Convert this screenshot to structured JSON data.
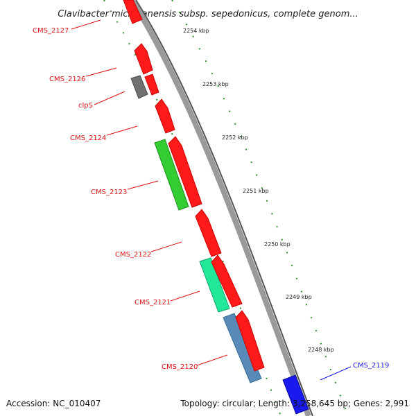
{
  "title": "Clavibacter michiganensis subsp. sepedonicus, complete genom...",
  "accession": "Accession: NC_010407",
  "summary": "Topology: circular; Length: 3,258,645 bp; Genes: 2,991",
  "colors": {
    "backbone": "#7a7a7a",
    "tick": "#2a8f2a",
    "forward_gene": "#ff1a1a",
    "reverse_label": "#dd1111",
    "clps": "#707070",
    "cms_2123": "#33cc33",
    "cms_2121": "#22e89a",
    "cms_2120": "#5a8ab8",
    "cms_2119": "#1a1aee"
  },
  "scale_labels": [
    "2254 kbp",
    "2253 kbp",
    "2252 kbp",
    "2251 kbp",
    "2250 kbp",
    "2249 kbp",
    "2248 kbp"
  ],
  "genes": [
    {
      "name": "CMS_2127",
      "color": "#dd1111"
    },
    {
      "name": "CMS_2126",
      "color": "#dd1111"
    },
    {
      "name": "clpS",
      "color": "#dd1111"
    },
    {
      "name": "CMS_2124",
      "color": "#dd1111"
    },
    {
      "name": "CMS_2123",
      "color": "#dd1111"
    },
    {
      "name": "CMS_2122",
      "color": "#dd1111"
    },
    {
      "name": "CMS_2121",
      "color": "#dd1111"
    },
    {
      "name": "CMS_2120",
      "color": "#dd1111"
    },
    {
      "name": "CMS_2119",
      "color": "#1a1aee"
    }
  ]
}
